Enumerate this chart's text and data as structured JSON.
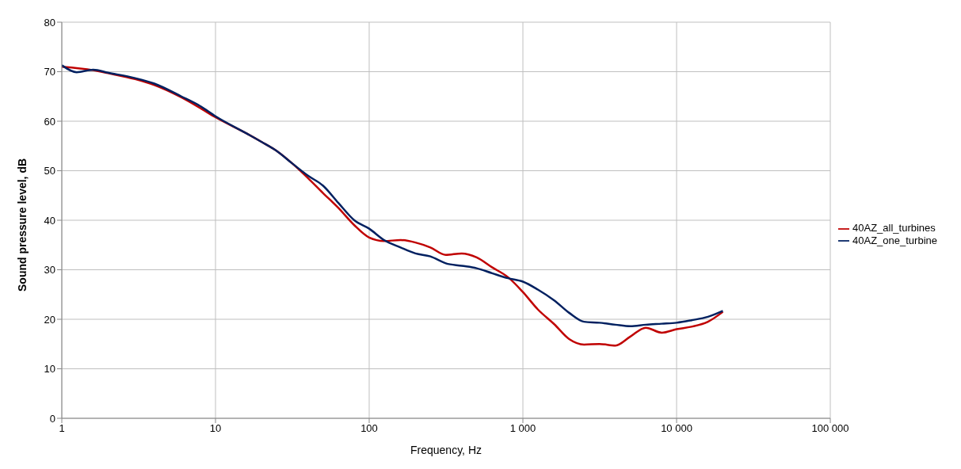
{
  "chart_data": {
    "type": "line",
    "xlabel": "Frequency, Hz",
    "ylabel": "Sound pressure level, dB",
    "log": "x",
    "grid": true,
    "legend": "right",
    "marker": "none",
    "line_style": "solid",
    "xlim": [
      1,
      100000
    ],
    "xticks": [
      1,
      10,
      100,
      {
        "value": 1000,
        "label": "1 000"
      },
      {
        "value": 10000,
        "label": "10 000"
      },
      {
        "value": 100000,
        "label": "100 000"
      }
    ],
    "ylim": [
      0,
      80
    ],
    "yticks": [
      0,
      10,
      20,
      30,
      40,
      50,
      60,
      70,
      80
    ],
    "series": [
      {
        "name": "40AZ_all_turbines",
        "color": "#c00000",
        "x": [
          1,
          1.6,
          2,
          3,
          4,
          6,
          8,
          10,
          16,
          20,
          25,
          31.5,
          40,
          50,
          63,
          80,
          100,
          125,
          160,
          200,
          250,
          315,
          400,
          500,
          630,
          800,
          1000,
          1250,
          1600,
          2000,
          2500,
          3150,
          4000,
          5000,
          6300,
          8000,
          10000,
          12500,
          16000,
          20000
        ],
        "values": [
          71,
          70.3,
          69.7,
          68.5,
          67.3,
          64.8,
          62.6,
          60.8,
          57.5,
          55.8,
          54,
          51.5,
          48.5,
          45.5,
          42.5,
          39,
          36.5,
          35.8,
          36,
          35.5,
          34.5,
          33,
          33.3,
          32.5,
          30.5,
          28.5,
          25.5,
          22,
          19,
          16,
          14.9,
          15,
          14.7,
          16.5,
          18.3,
          17.3,
          18,
          18.5,
          19.5,
          21.5
        ]
      },
      {
        "name": "40AZ_one_turbine",
        "color": "#002060",
        "x": [
          1,
          1.25,
          1.6,
          2,
          3,
          4,
          6,
          8,
          10,
          16,
          20,
          25,
          31.5,
          40,
          50,
          63,
          80,
          100,
          125,
          160,
          200,
          250,
          315,
          400,
          500,
          630,
          800,
          1000,
          1250,
          1600,
          2000,
          2500,
          3150,
          4000,
          5000,
          6300,
          8000,
          10000,
          12500,
          16000,
          20000
        ],
        "values": [
          71.3,
          69.9,
          70.4,
          69.8,
          68.7,
          67.6,
          65,
          63,
          61,
          57.5,
          55.8,
          54,
          51.5,
          49,
          47,
          43.5,
          40,
          38.3,
          36,
          34.5,
          33.3,
          32.7,
          31.3,
          30.8,
          30.3,
          29.3,
          28.3,
          27.6,
          26,
          23.8,
          21.3,
          19.5,
          19.3,
          18.9,
          18.6,
          18.9,
          19.1,
          19.3,
          19.8,
          20.5,
          21.7
        ]
      }
    ]
  }
}
